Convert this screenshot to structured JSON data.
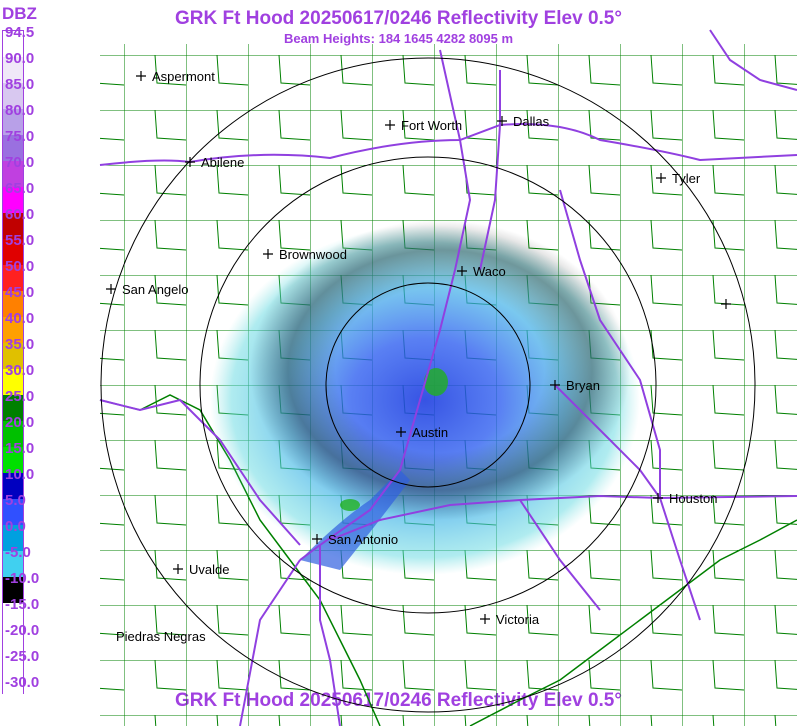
{
  "title": "GRK Ft Hood 20250617/0246 Reflectivity Elev 0.5°",
  "beam_heights": "Beam Heights: 184 1645 4282 8095 m",
  "legend": {
    "unit": "DBZ",
    "labels": [
      "94.5",
      "90.0",
      "85.0",
      "80.0",
      "75.0",
      "70.0",
      "65.0",
      "60.0",
      "55.0",
      "50.0",
      "45.0",
      "40.0",
      "35.0",
      "30.0",
      "25.0",
      "20.0",
      "15.0",
      "10.0",
      "5.0",
      "0.0",
      "-5.0",
      "-10.0",
      "-15.0",
      "-20.0",
      "-25.0",
      "-30.0"
    ],
    "colors": [
      "#ffffff",
      "#f0e8f8",
      "#d8c8f0",
      "#b8a0e8",
      "#9a70e0",
      "#c040e0",
      "#ff00ff",
      "#c00000",
      "#e00000",
      "#ff2020",
      "#ff8000",
      "#ffa000",
      "#e0c000",
      "#ffff00",
      "#008000",
      "#00c000",
      "#00e000",
      "#0000c0",
      "#3050ff",
      "#00a0e0",
      "#40d0f0",
      "#000000",
      "#ffffff",
      "#ffffff",
      "#ffffff",
      "#ffffff"
    ]
  },
  "cities": [
    {
      "name": "Aspermont"
    },
    {
      "name": "Fort Worth"
    },
    {
      "name": "Dallas"
    },
    {
      "name": "Abilene"
    },
    {
      "name": "Tyler"
    },
    {
      "name": "Brownwood"
    },
    {
      "name": "Waco"
    },
    {
      "name": "San Angelo"
    },
    {
      "name": "Bryan"
    },
    {
      "name": "Austin"
    },
    {
      "name": "Houston"
    },
    {
      "name": "San Antonio"
    },
    {
      "name": "Uvalde"
    },
    {
      "name": "Victoria"
    },
    {
      "name": "Piedras Negras"
    },
    {
      "name": ""
    }
  ],
  "colors": {
    "title": "#a040e0",
    "county": "#008000",
    "highway": "#9040e0",
    "range_ring": "#000000"
  }
}
